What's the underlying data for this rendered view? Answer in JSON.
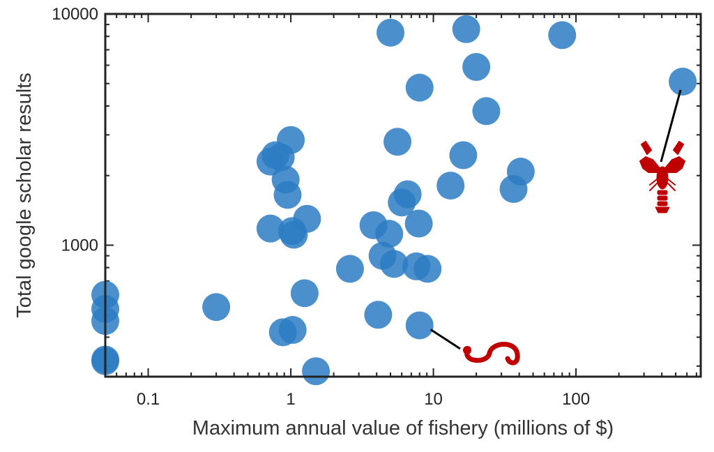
{
  "chart_data": {
    "type": "scatter",
    "title": "",
    "xlabel": "Maximum annual value of fishery (millions of $)",
    "ylabel": "Total google scholar results",
    "xscale": "log",
    "yscale": "log",
    "xlim": [
      0.05,
      750
    ],
    "ylim": [
      270,
      10000
    ],
    "grid": false,
    "legend": "none",
    "x_ticks": [
      {
        "value": 0.1,
        "label": "0.1"
      },
      {
        "value": 1,
        "label": "1"
      },
      {
        "value": 10,
        "label": "10"
      },
      {
        "value": 100,
        "label": "100"
      }
    ],
    "y_ticks": [
      {
        "value": 1000,
        "label": "1000"
      },
      {
        "value": 10000,
        "label": "10000"
      }
    ],
    "series": [
      {
        "color": "#2b7cc3",
        "points": [
          {
            "x": 0.05,
            "y": 610
          },
          {
            "x": 0.05,
            "y": 530
          },
          {
            "x": 0.05,
            "y": 470
          },
          {
            "x": 0.05,
            "y": 320
          },
          {
            "x": 0.05,
            "y": 315
          },
          {
            "x": 0.3,
            "y": 540
          },
          {
            "x": 0.72,
            "y": 2300
          },
          {
            "x": 0.78,
            "y": 2450
          },
          {
            "x": 0.85,
            "y": 2400
          },
          {
            "x": 0.72,
            "y": 1180
          },
          {
            "x": 0.92,
            "y": 1920
          },
          {
            "x": 0.95,
            "y": 1650
          },
          {
            "x": 1.0,
            "y": 2850
          },
          {
            "x": 0.88,
            "y": 420
          },
          {
            "x": 1.03,
            "y": 430
          },
          {
            "x": 1.02,
            "y": 1150
          },
          {
            "x": 1.05,
            "y": 1110
          },
          {
            "x": 1.3,
            "y": 1300
          },
          {
            "x": 1.25,
            "y": 620
          },
          {
            "x": 1.5,
            "y": 285
          },
          {
            "x": 2.6,
            "y": 790
          },
          {
            "x": 3.8,
            "y": 1220
          },
          {
            "x": 4.1,
            "y": 500
          },
          {
            "x": 4.4,
            "y": 900
          },
          {
            "x": 4.9,
            "y": 1120
          },
          {
            "x": 5.3,
            "y": 830
          },
          {
            "x": 5.0,
            "y": 8300
          },
          {
            "x": 5.6,
            "y": 2800
          },
          {
            "x": 6.0,
            "y": 1530
          },
          {
            "x": 6.6,
            "y": 1660
          },
          {
            "x": 7.6,
            "y": 810
          },
          {
            "x": 8.0,
            "y": 4800
          },
          {
            "x": 7.9,
            "y": 1240
          },
          {
            "x": 9.1,
            "y": 790
          },
          {
            "x": 8.0,
            "y": 450
          },
          {
            "x": 13.2,
            "y": 1810
          },
          {
            "x": 16.2,
            "y": 2450
          },
          {
            "x": 17.0,
            "y": 8600
          },
          {
            "x": 20.0,
            "y": 5900
          },
          {
            "x": 23.5,
            "y": 3800
          },
          {
            "x": 36.5,
            "y": 1750
          },
          {
            "x": 41.0,
            "y": 2080
          },
          {
            "x": 80.0,
            "y": 8100
          },
          {
            "x": 560.0,
            "y": 5100
          }
        ]
      }
    ],
    "annotations": [
      {
        "kind": "lobster-icon",
        "color": "#c00000",
        "attached_to": {
          "x": 560.0,
          "y": 5100
        }
      },
      {
        "kind": "worm-icon",
        "color": "#c00000",
        "attached_to": {
          "x": 8.0,
          "y": 450
        }
      }
    ]
  }
}
